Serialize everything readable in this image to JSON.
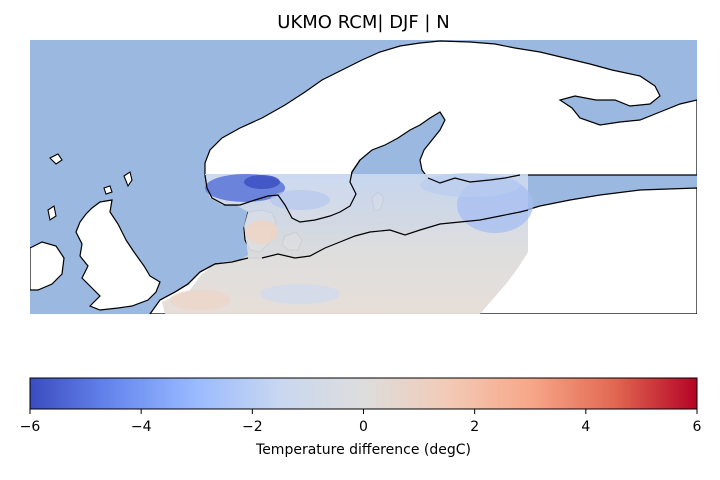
{
  "figure": {
    "title": "UKMO RCM| DJF | N"
  },
  "map": {
    "region": "Northern Europe / Scandinavia",
    "sea_color": "#9ab8e0",
    "land_color": "#ffffff",
    "coastline_color": "#000000"
  },
  "colorbar": {
    "label": "Temperature difference (degC)",
    "colormap": "coolwarm",
    "range": [
      -6,
      6
    ],
    "ticks": [
      {
        "value": -6,
        "label": "−6"
      },
      {
        "value": -4,
        "label": "−4"
      },
      {
        "value": -2,
        "label": "−2"
      },
      {
        "value": 0,
        "label": "0"
      },
      {
        "value": 2,
        "label": "2"
      },
      {
        "value": 4,
        "label": "4"
      },
      {
        "value": 6,
        "label": "6"
      }
    ],
    "stops": [
      "#3b4cc0",
      "#6788ee",
      "#9abbff",
      "#c9d7f0",
      "#dddddd",
      "#f2cbb7",
      "#f7a789",
      "#e26952",
      "#b40426"
    ]
  }
}
